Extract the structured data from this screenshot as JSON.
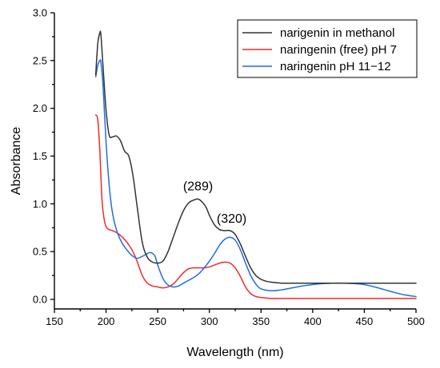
{
  "chart_data": {
    "type": "line",
    "xlabel": "Wavelength (nm)",
    "ylabel": "Absorbance",
    "xlim": [
      150,
      500
    ],
    "ylim": [
      -0.1,
      3.0
    ],
    "xticks": [
      150,
      200,
      250,
      300,
      350,
      400,
      450,
      500
    ],
    "xtick_labels": [
      "150",
      "200",
      "250",
      "300",
      "350",
      "400",
      "450",
      "500"
    ],
    "yticks": [
      0.0,
      0.5,
      1.0,
      1.5,
      2.0,
      2.5,
      3.0
    ],
    "ytick_labels": [
      "0.0",
      "0.5",
      "1.0",
      "1.5",
      "2.0",
      "2.5",
      "3.0"
    ],
    "grid": false,
    "legend_position": "top-right",
    "annotations": [
      {
        "text": "(289)",
        "x": 289,
        "y": 1.04
      },
      {
        "text": "(320)",
        "x": 320,
        "y": 0.72
      }
    ],
    "series": [
      {
        "name": "narigenin in methanol",
        "color": "#333333",
        "x": [
          190,
          192,
          194,
          195,
          197,
          200,
          203,
          206,
          210,
          214,
          218,
          222,
          226,
          230,
          235,
          240,
          245,
          250,
          255,
          260,
          265,
          270,
          275,
          280,
          285,
          289,
          293,
          297,
          300,
          305,
          310,
          315,
          320,
          325,
          330,
          335,
          340,
          345,
          350,
          355,
          360,
          370,
          380,
          400,
          450,
          500
        ],
        "y": [
          2.35,
          2.68,
          2.79,
          2.77,
          2.45,
          1.98,
          1.72,
          1.7,
          1.71,
          1.66,
          1.55,
          1.5,
          1.3,
          0.98,
          0.6,
          0.44,
          0.39,
          0.38,
          0.4,
          0.5,
          0.65,
          0.8,
          0.93,
          1.01,
          1.04,
          1.05,
          1.02,
          0.96,
          0.88,
          0.78,
          0.73,
          0.72,
          0.72,
          0.68,
          0.58,
          0.45,
          0.33,
          0.25,
          0.21,
          0.19,
          0.18,
          0.17,
          0.17,
          0.17,
          0.17,
          0.17
        ]
      },
      {
        "name": "naringenin (free) pH 7",
        "color": "#ee2b2b",
        "x": [
          190,
          192,
          194,
          196,
          198,
          200,
          203,
          206,
          210,
          215,
          220,
          225,
          230,
          235,
          240,
          245,
          250,
          255,
          260,
          265,
          270,
          275,
          280,
          285,
          290,
          295,
          300,
          305,
          310,
          315,
          320,
          325,
          330,
          335,
          340,
          345,
          350,
          360,
          380,
          400,
          450,
          500
        ],
        "y": [
          1.93,
          1.88,
          1.55,
          1.05,
          0.85,
          0.76,
          0.73,
          0.72,
          0.7,
          0.66,
          0.6,
          0.52,
          0.4,
          0.25,
          0.17,
          0.14,
          0.13,
          0.12,
          0.13,
          0.16,
          0.22,
          0.28,
          0.32,
          0.33,
          0.33,
          0.33,
          0.34,
          0.36,
          0.38,
          0.39,
          0.38,
          0.33,
          0.24,
          0.13,
          0.06,
          0.03,
          0.02,
          0.01,
          0.01,
          0.01,
          0.01,
          0.01
        ]
      },
      {
        "name": "naringenin pH 11−12",
        "color": "#1f6fdf",
        "x": [
          190,
          192,
          194,
          195,
          197,
          200,
          203,
          206,
          210,
          215,
          220,
          225,
          230,
          235,
          240,
          243,
          247,
          250,
          255,
          260,
          265,
          270,
          275,
          280,
          285,
          290,
          295,
          300,
          305,
          310,
          315,
          320,
          325,
          330,
          335,
          340,
          345,
          350,
          360,
          370,
          380,
          390,
          400,
          410,
          420,
          430,
          440,
          450,
          460,
          470,
          480,
          490,
          500
        ],
        "y": [
          2.33,
          2.45,
          2.5,
          2.48,
          2.25,
          1.65,
          1.2,
          0.92,
          0.73,
          0.6,
          0.52,
          0.46,
          0.43,
          0.45,
          0.48,
          0.49,
          0.46,
          0.36,
          0.22,
          0.15,
          0.13,
          0.14,
          0.17,
          0.2,
          0.23,
          0.27,
          0.33,
          0.4,
          0.48,
          0.57,
          0.63,
          0.65,
          0.62,
          0.52,
          0.38,
          0.25,
          0.16,
          0.11,
          0.09,
          0.1,
          0.12,
          0.14,
          0.155,
          0.165,
          0.17,
          0.17,
          0.165,
          0.155,
          0.13,
          0.1,
          0.07,
          0.045,
          0.03
        ]
      }
    ]
  }
}
